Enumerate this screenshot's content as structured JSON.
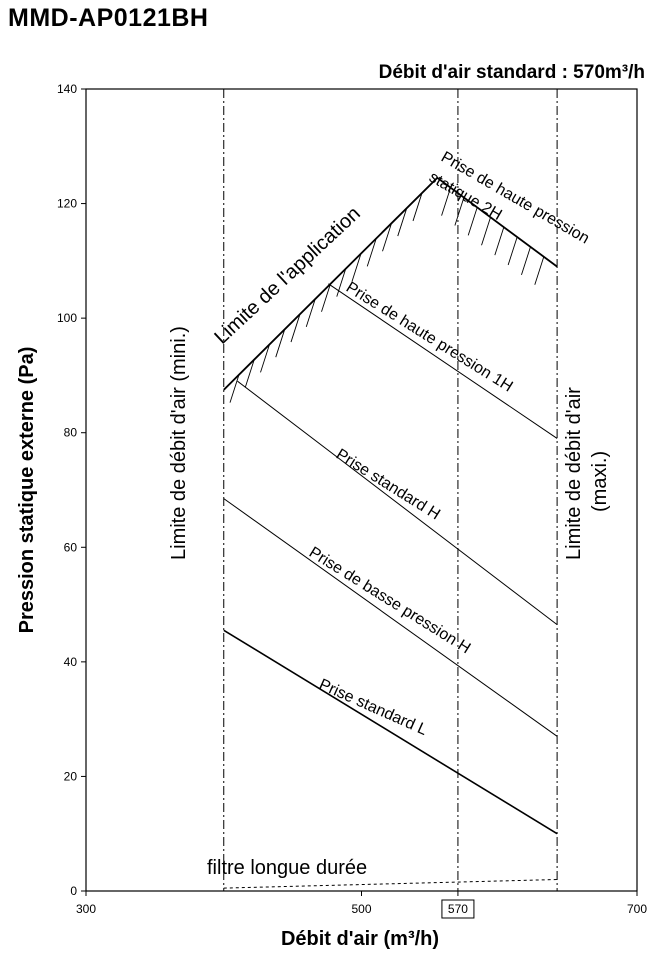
{
  "header": {
    "title": "MMD-AP0121BH"
  },
  "chart_data": {
    "type": "line",
    "subtitle": "Débit d'air standard : 570m³/h",
    "xlabel": "Débit d'air (m³/h)",
    "ylabel": "Pression statique externe (Pa)",
    "xlim": [
      300,
      700
    ],
    "ylim": [
      0,
      140
    ],
    "x_ticks": [
      "300",
      "500",
      "570",
      "700"
    ],
    "y_ticks": [
      "0",
      "20",
      "40",
      "60",
      "80",
      "100",
      "120",
      "140"
    ],
    "highlighted_x": 570,
    "series": [
      {
        "name": "Prise de haute pression statique 2H",
        "x": [
          400,
          555,
          642
        ],
        "y": [
          87.5,
          124.5,
          109
        ]
      },
      {
        "name": "Prise de haute pression 1H",
        "x": [
          476,
          642
        ],
        "y": [
          106,
          79
        ]
      },
      {
        "name": "Prise standard H",
        "x": [
          410,
          642
        ],
        "y": [
          89,
          46.5
        ]
      },
      {
        "name": "Prise de basse pression H",
        "x": [
          400,
          642
        ],
        "y": [
          68.5,
          27
        ]
      },
      {
        "name": "Prise standard L",
        "x": [
          400,
          642
        ],
        "y": [
          45.5,
          10
        ]
      },
      {
        "name": "Limite de l'application",
        "x": [
          400,
          555,
          642
        ],
        "y": [
          87.5,
          124.5,
          109
        ]
      },
      {
        "name": "filtre longue durée",
        "x": [
          400,
          642
        ],
        "y": [
          0.5,
          2
        ]
      }
    ],
    "vertical_limits": [
      {
        "name": "Limite de débit d'air (mini.)",
        "x": 400
      },
      {
        "name": "570",
        "x": 570
      },
      {
        "name": "Limite de débit d'air (maxi.)",
        "x": 642
      }
    ],
    "annotations": {
      "limit_app": "Limite de l'application",
      "hp2h_line1": "Prise de haute pression",
      "hp2h_line2": "statique 2H",
      "hp1h": "Prise de haute pression 1H",
      "std_h": "Prise standard H",
      "bp_h": "Prise de basse pression H",
      "std_l": "Prise standard L",
      "min_limit": "Limite de débit d'air (mini.)",
      "max_limit_line1": "Limite de débit d'air",
      "max_limit_line2": "(maxi.)",
      "filter": "filtre longue durée"
    }
  }
}
